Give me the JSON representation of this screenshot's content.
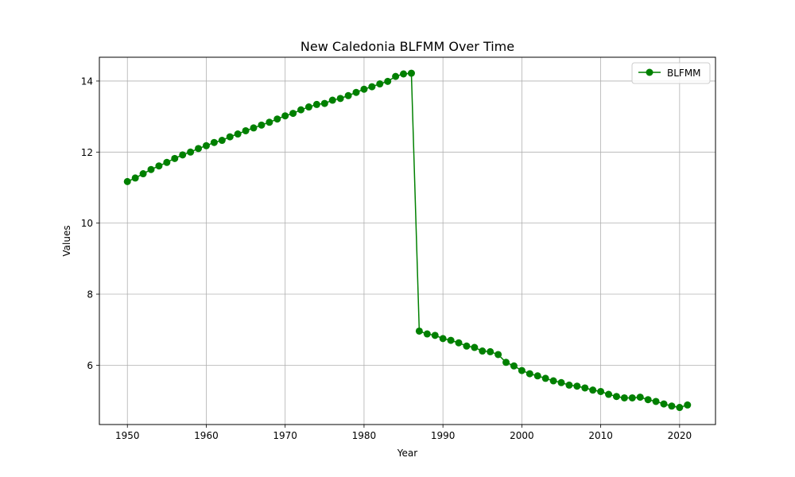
{
  "chart_data": {
    "type": "line",
    "title": "New Caledonia BLFMM Over Time",
    "xlabel": "Year",
    "ylabel": "Values",
    "xlim": [
      1946.45,
      2024.55
    ],
    "ylim": [
      4.33,
      14.67
    ],
    "xticks": [
      1950,
      1960,
      1970,
      1980,
      1990,
      2000,
      2010,
      2020
    ],
    "yticks": [
      6,
      8,
      10,
      12,
      14
    ],
    "grid": true,
    "legend_position": "top-right",
    "series": [
      {
        "name": "BLFMM",
        "color": "#008000",
        "marker": "circle",
        "x": [
          1950,
          1951,
          1952,
          1953,
          1954,
          1955,
          1956,
          1957,
          1958,
          1959,
          1960,
          1961,
          1962,
          1963,
          1964,
          1965,
          1966,
          1967,
          1968,
          1969,
          1970,
          1971,
          1972,
          1973,
          1974,
          1975,
          1976,
          1977,
          1978,
          1979,
          1980,
          1981,
          1982,
          1983,
          1984,
          1985,
          1986,
          1987,
          1988,
          1989,
          1990,
          1991,
          1992,
          1993,
          1994,
          1995,
          1996,
          1997,
          1998,
          1999,
          2000,
          2001,
          2002,
          2003,
          2004,
          2005,
          2006,
          2007,
          2008,
          2009,
          2010,
          2011,
          2012,
          2013,
          2014,
          2015,
          2016,
          2017,
          2018,
          2019,
          2020,
          2021
        ],
        "values": [
          11.17,
          11.27,
          11.39,
          11.51,
          11.61,
          11.71,
          11.82,
          11.92,
          12.0,
          12.1,
          12.18,
          12.27,
          12.33,
          12.43,
          12.51,
          12.6,
          12.68,
          12.76,
          12.84,
          12.93,
          13.02,
          13.09,
          13.19,
          13.27,
          13.34,
          13.37,
          13.46,
          13.51,
          13.59,
          13.68,
          13.77,
          13.84,
          13.92,
          13.99,
          14.13,
          14.2,
          14.22,
          6.96,
          6.88,
          6.84,
          6.75,
          6.7,
          6.63,
          6.54,
          6.5,
          6.4,
          6.38,
          6.3,
          6.08,
          5.98,
          5.85,
          5.76,
          5.7,
          5.63,
          5.56,
          5.51,
          5.44,
          5.41,
          5.36,
          5.3,
          5.26,
          5.18,
          5.12,
          5.08,
          5.08,
          5.1,
          5.03,
          4.98,
          4.91,
          4.85,
          4.81,
          4.88
        ]
      }
    ]
  }
}
